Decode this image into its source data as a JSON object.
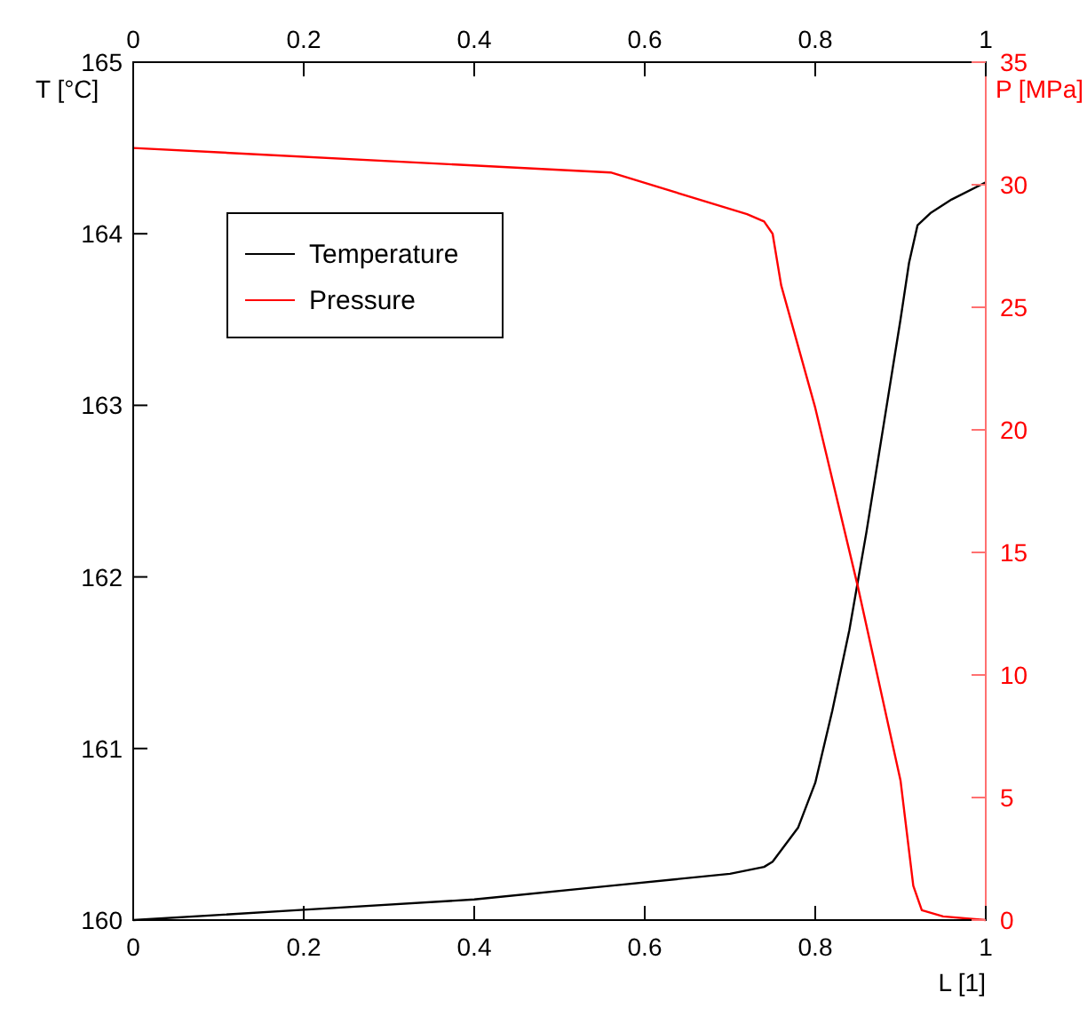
{
  "chart_data": {
    "type": "line",
    "xlabel": "L [1]",
    "ylabel": "T [°C]",
    "y2label": "P [MPa]",
    "xlim": [
      0,
      1
    ],
    "xticks": [
      0,
      0.2,
      0.4,
      0.6,
      0.8,
      1
    ],
    "x2lim": [
      0,
      1
    ],
    "x2ticks": [
      0,
      0.2,
      0.4,
      0.6,
      0.8,
      1
    ],
    "ylim": [
      160,
      165
    ],
    "yticks": [
      160,
      161,
      162,
      163,
      164,
      165
    ],
    "y2lim": [
      0,
      35
    ],
    "y2ticks": [
      0,
      5,
      10,
      15,
      20,
      25,
      30,
      35
    ],
    "grid": false,
    "legend": "top left",
    "marker": "none",
    "line_style": "solid",
    "series": [
      {
        "name": "Temperature",
        "color": "#000000",
        "x": [
          0,
          0.2,
          0.4,
          0.56,
          0.7,
          0.74,
          0.75,
          0.78,
          0.8,
          0.82,
          0.84,
          0.86,
          0.88,
          0.9,
          0.91,
          0.92,
          0.935,
          0.96,
          1
        ],
        "values": [
          160,
          160.06,
          160.12,
          160.2,
          160.27,
          160.31,
          160.34,
          160.54,
          160.8,
          161.22,
          161.69,
          162.26,
          162.88,
          163.5,
          163.83,
          164.05,
          164.12,
          164.2,
          164.3
        ]
      },
      {
        "name": "Pressure",
        "color": "#ff0000",
        "axis": "y2",
        "x": [
          0,
          0.56,
          0.72,
          0.74,
          0.75,
          0.76,
          0.8,
          0.85,
          0.9,
          0.915,
          0.925,
          0.95,
          1
        ],
        "values": [
          31.5,
          30.5,
          28.8,
          28.5,
          28,
          25.9,
          20.9,
          13.6,
          5.7,
          1.4,
          0.4,
          0.15,
          0
        ]
      }
    ]
  }
}
